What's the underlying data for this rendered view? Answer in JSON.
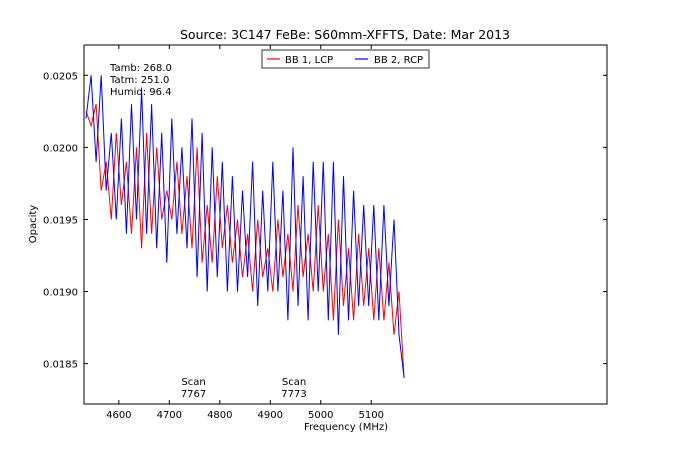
{
  "chart_data": {
    "type": "line",
    "title": "Source: 3C147 FeBe: S60mm-XFFTS, Date: Mar 2013",
    "xlabel": "Frequency (MHz)",
    "ylabel": "Opacity",
    "xlim": [
      4531,
      5567
    ],
    "ylim": [
      0.01822,
      0.02071
    ],
    "x_ticks": [
      4600,
      4700,
      4800,
      4900,
      5000,
      5100
    ],
    "x_tick_labels": [
      "4600",
      "4700",
      "4800",
      "4900",
      "5000",
      "5100"
    ],
    "y_ticks": [
      0.0185,
      0.019,
      0.0195,
      0.02,
      0.0205
    ],
    "y_tick_labels": [
      "0.0185",
      "0.0190",
      "0.0195",
      "0.0200",
      "0.0205"
    ],
    "grid": false,
    "legend_position": "top-center",
    "info_lines": [
      "Tamb: 268.0",
      "Tatm: 251.0",
      "Humid: 96.4"
    ],
    "scan_annotations": [
      {
        "label": "Scan",
        "value": "7767",
        "x": 4748
      },
      {
        "label": "Scan",
        "value": "7773",
        "x": 4947
      }
    ],
    "series": [
      {
        "name": "BB 1, LCP",
        "color": "#ff0000",
        "x": [
          4535,
          4545,
          4555,
          4565,
          4575,
          4585,
          4595,
          4605,
          4615,
          4625,
          4635,
          4645,
          4655,
          4665,
          4675,
          4685,
          4695,
          4705,
          4715,
          4725,
          4735,
          4745,
          4755,
          4765,
          4775,
          4785,
          4795,
          4805,
          4815,
          4825,
          4835,
          4845,
          4855,
          4865,
          4875,
          4885,
          4895,
          4905,
          4915,
          4925,
          4935,
          4945,
          4955,
          4965,
          4975,
          4985,
          4995,
          5005,
          5015,
          5025,
          5035,
          5045,
          5055,
          5065,
          5075,
          5085,
          5095,
          5105,
          5115,
          5125,
          5135,
          5145,
          5155,
          5165
        ],
        "y": [
          0.02025,
          0.02015,
          0.0203,
          0.0197,
          0.0199,
          0.0195,
          0.0201,
          0.0196,
          0.0199,
          0.0194,
          0.02,
          0.0193,
          0.0201,
          0.0194,
          0.02,
          0.0195,
          0.0197,
          0.0195,
          0.0199,
          0.0194,
          0.0198,
          0.0193,
          0.02,
          0.0192,
          0.0196,
          0.0192,
          0.0198,
          0.0193,
          0.0196,
          0.0192,
          0.0195,
          0.0191,
          0.0194,
          0.019,
          0.0195,
          0.0191,
          0.0193,
          0.019,
          0.0195,
          0.0191,
          0.0194,
          0.019,
          0.0196,
          0.0191,
          0.0194,
          0.019,
          0.0196,
          0.019,
          0.0194,
          0.0188,
          0.0195,
          0.0189,
          0.0193,
          0.0188,
          0.0194,
          0.0189,
          0.0193,
          0.0188,
          0.0193,
          0.0188,
          0.0192,
          0.0187,
          0.019,
          0.0184
        ]
      },
      {
        "name": "BB 2, RCP",
        "color": "#0000ff",
        "x": [
          4535,
          4545,
          4555,
          4565,
          4575,
          4585,
          4595,
          4605,
          4615,
          4625,
          4635,
          4645,
          4655,
          4665,
          4675,
          4685,
          4695,
          4705,
          4715,
          4725,
          4735,
          4745,
          4755,
          4765,
          4775,
          4785,
          4795,
          4805,
          4815,
          4825,
          4835,
          4845,
          4855,
          4865,
          4875,
          4885,
          4895,
          4905,
          4915,
          4925,
          4935,
          4945,
          4955,
          4965,
          4975,
          4985,
          4995,
          5005,
          5015,
          5025,
          5035,
          5045,
          5055,
          5065,
          5075,
          5085,
          5095,
          5105,
          5115,
          5125,
          5135,
          5145,
          5155,
          5165
        ],
        "y": [
          0.0202,
          0.0205,
          0.0199,
          0.0205,
          0.0197,
          0.0201,
          0.0195,
          0.0202,
          0.0194,
          0.0203,
          0.0195,
          0.0204,
          0.0194,
          0.0203,
          0.0193,
          0.0201,
          0.0192,
          0.0202,
          0.0194,
          0.02,
          0.0193,
          0.0202,
          0.0191,
          0.0201,
          0.019,
          0.02,
          0.0191,
          0.0199,
          0.019,
          0.0198,
          0.019,
          0.0197,
          0.0191,
          0.0199,
          0.0189,
          0.0197,
          0.019,
          0.0199,
          0.019,
          0.0197,
          0.0188,
          0.02,
          0.0189,
          0.0198,
          0.0188,
          0.0199,
          0.019,
          0.0199,
          0.0188,
          0.0199,
          0.0187,
          0.0198,
          0.0188,
          0.0197,
          0.0189,
          0.0196,
          0.0189,
          0.0196,
          0.0188,
          0.0196,
          0.0189,
          0.0195,
          0.0187,
          0.0184
        ]
      }
    ]
  }
}
